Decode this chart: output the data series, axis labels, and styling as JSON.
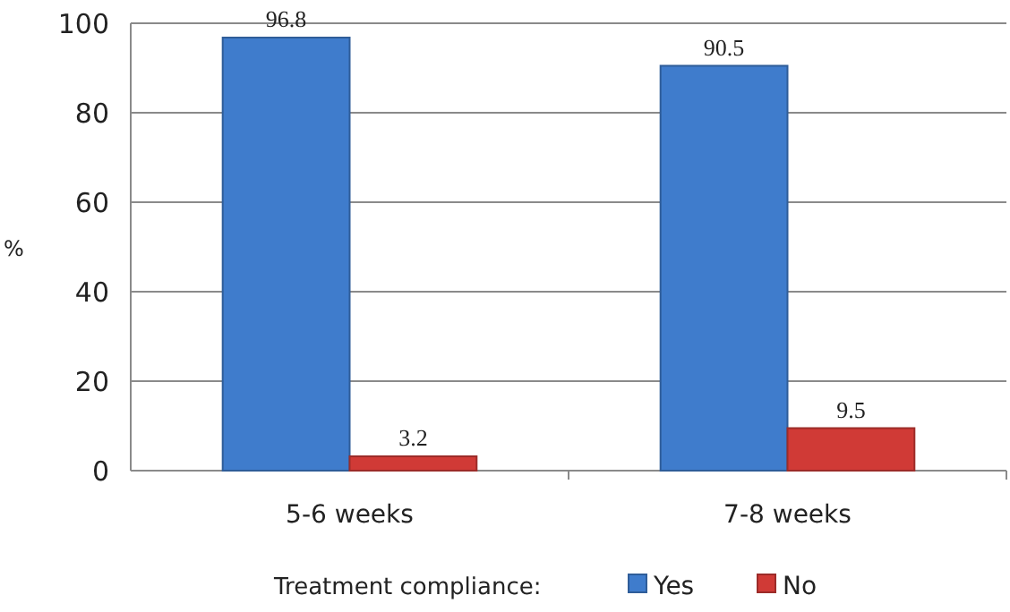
{
  "chart_data": {
    "type": "bar",
    "ylabel": "%",
    "legend_title": "Treatment compliance:",
    "categories": [
      "5-6 weeks",
      "7-8 weeks"
    ],
    "series": [
      {
        "name": "Yes",
        "color": "#3f7ccc",
        "values": [
          96.8,
          90.5
        ]
      },
      {
        "name": "No",
        "color": "#d03a36",
        "values": [
          3.2,
          9.5
        ]
      }
    ],
    "ylim": [
      0,
      100
    ],
    "yticks": [
      0,
      20,
      40,
      60,
      80,
      100
    ],
    "grid": "y",
    "legend": "bottom",
    "data_labels": true
  }
}
